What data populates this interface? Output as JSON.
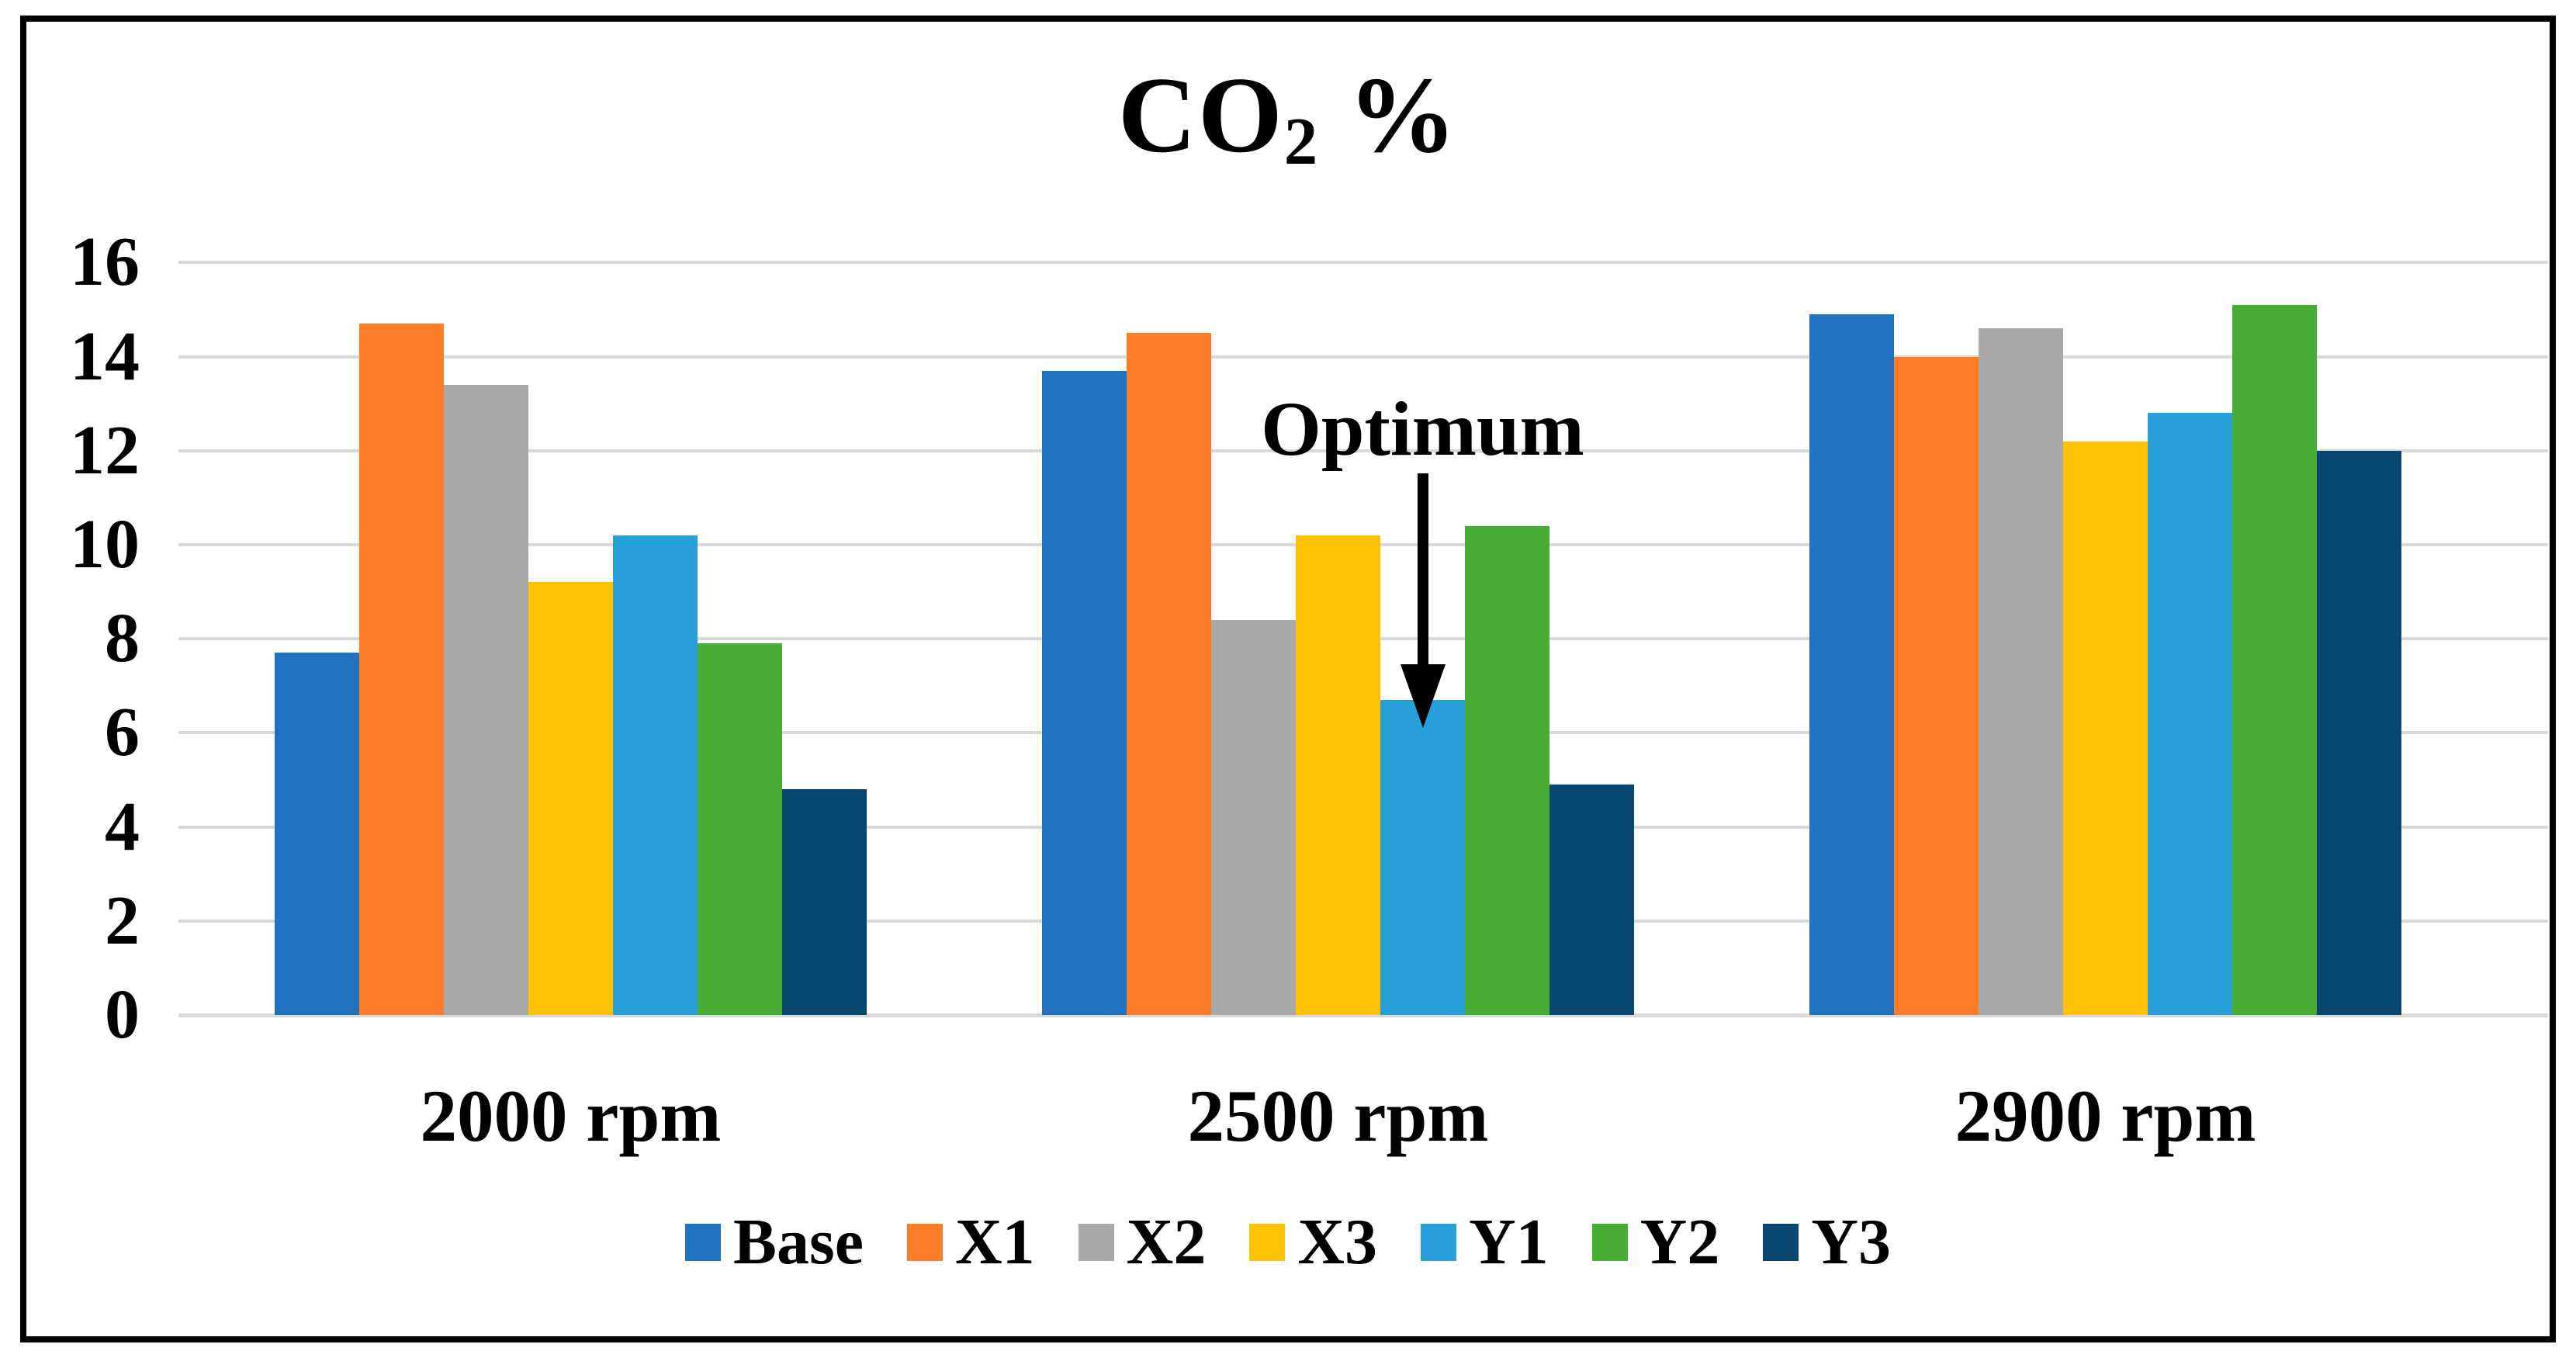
{
  "title": {
    "prefix": "CO",
    "subscript": "2",
    "suffix": " %"
  },
  "annotation_label": "Optimum",
  "chart_data": {
    "type": "bar",
    "title": "CO2 %",
    "categories": [
      "2000 rpm",
      "2500 rpm",
      "2900 rpm"
    ],
    "series": [
      {
        "name": "Base",
        "color": "#1F73C0",
        "values": [
          7.7,
          13.7,
          14.9
        ]
      },
      {
        "name": "X1",
        "color": "#FB7D28",
        "values": [
          14.7,
          14.5,
          14.0
        ]
      },
      {
        "name": "X2",
        "color": "#A9A9A9",
        "values": [
          13.4,
          8.4,
          14.6
        ]
      },
      {
        "name": "X3",
        "color": "#FFC103",
        "values": [
          9.2,
          10.2,
          12.2
        ]
      },
      {
        "name": "Y1",
        "color": "#27A0D9",
        "values": [
          10.2,
          6.7,
          12.8
        ]
      },
      {
        "name": "Y2",
        "color": "#47AD35",
        "values": [
          7.9,
          10.4,
          15.1
        ]
      },
      {
        "name": "Y3",
        "color": "#08476F",
        "values": [
          4.8,
          4.9,
          12.0
        ]
      }
    ],
    "ylim": [
      0,
      16
    ],
    "y_ticks": [
      "0",
      "2",
      "4",
      "6",
      "8",
      "10",
      "12",
      "14",
      "16"
    ],
    "grid": true,
    "grid_color": "#D9D9D9",
    "legend_position": "bottom",
    "annotation": {
      "text": "Optimum",
      "category_index": 1,
      "series_index": 4
    }
  }
}
